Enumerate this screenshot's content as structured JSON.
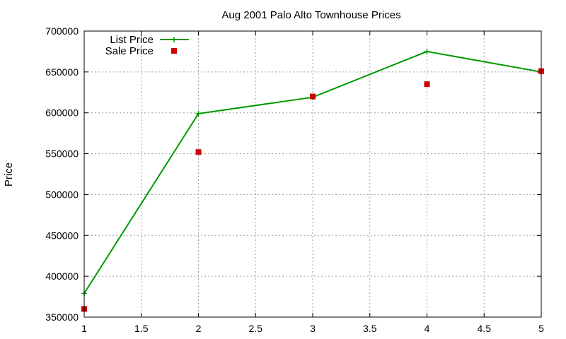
{
  "chart_data": {
    "type": "line",
    "title": "Aug 2001 Palo Alto Townhouse Prices",
    "xlabel": "",
    "ylabel": "Price",
    "xlim": [
      1,
      5
    ],
    "ylim": [
      350000,
      700000
    ],
    "xticks": [
      1,
      1.5,
      2,
      2.5,
      3,
      3.5,
      4,
      4.5,
      5
    ],
    "xtick_labels": [
      "1",
      "1.5",
      "2",
      "2.5",
      "3",
      "3.5",
      "4",
      "4.5",
      "5"
    ],
    "yticks": [
      350000,
      400000,
      450000,
      500000,
      550000,
      600000,
      650000,
      700000
    ],
    "ytick_labels": [
      "350000",
      "400000",
      "450000",
      "500000",
      "550000",
      "600000",
      "650000",
      "700000"
    ],
    "grid": true,
    "legend_position": "top-left",
    "series": [
      {
        "name": "List Price",
        "style": "linespoints",
        "marker": "plus",
        "color": "#009900",
        "x": [
          1,
          2,
          3,
          4,
          5
        ],
        "y": [
          379000,
          599000,
          619000,
          675000,
          650000
        ]
      },
      {
        "name": "Sale Price",
        "style": "points",
        "marker": "square",
        "color": "#cc0000",
        "x": [
          1,
          2,
          3,
          4,
          5
        ],
        "y": [
          360000,
          552000,
          620000,
          635000,
          651000
        ]
      }
    ]
  }
}
